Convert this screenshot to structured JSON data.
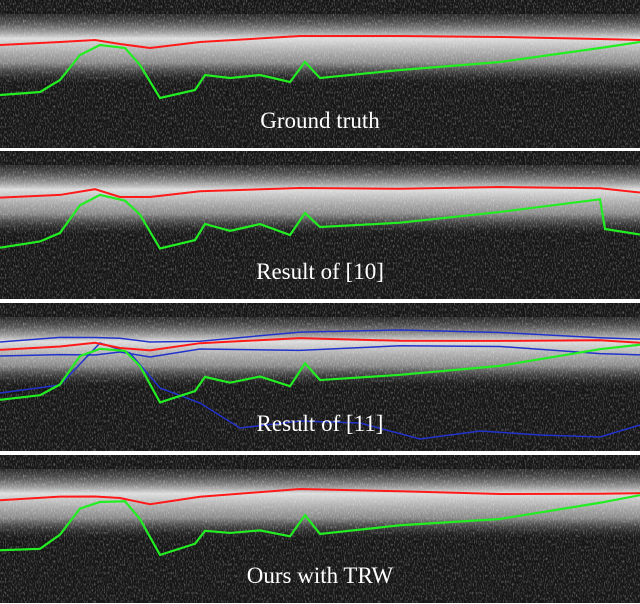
{
  "panels": [
    {
      "caption": "Ground truth"
    },
    {
      "caption": "Result of [10]"
    },
    {
      "caption": "Result of [11]"
    },
    {
      "caption": "Ours with TRW"
    }
  ]
}
